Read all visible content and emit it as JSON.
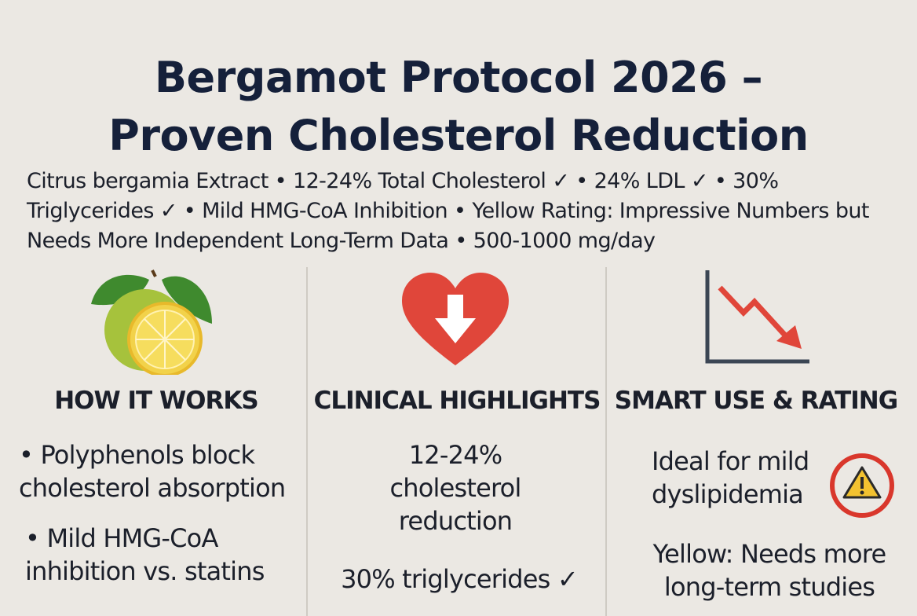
{
  "header": {
    "title_lines": [
      "Bergamot Protocol 2026 –",
      "Proven Cholesterol Reduction"
    ],
    "subtitle": "Citrus bergamia Extract • 12-24% Total Cholesterol ✓ • 24% LDL ✓ • 30% Triglycerides ✓ • Mild HMG-CoA Inhibition • Yellow Rating: Impressive Numbers but Needs More Independent Long-Term Data • 500-1000 mg/day"
  },
  "columns": [
    {
      "heading": "HOW IT WORKS",
      "items": [
        "• Polyphenols block cholesterol absorption",
        "• Mild HMG-CoA inhibition vs. statins"
      ]
    },
    {
      "heading": "CLINICAL HIGHLIGHTS",
      "items": [
        "12-24% cholesterol reduction",
        "30% triglycerides ✓"
      ]
    },
    {
      "heading": "SMART USE & RATING",
      "items": [
        "Ideal for mild dyslipidemia",
        "Yellow: Needs more long-term studies"
      ]
    }
  ]
}
